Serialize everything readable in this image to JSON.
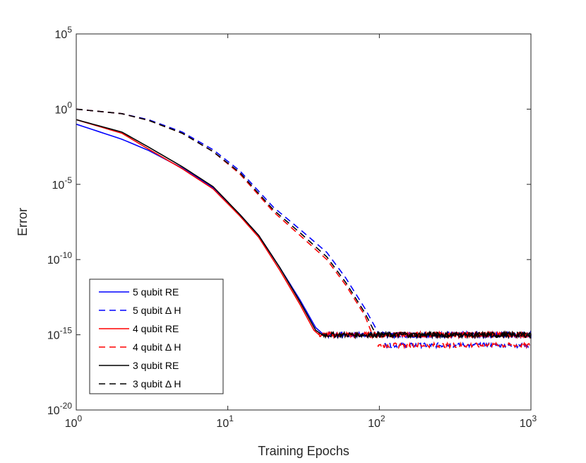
{
  "chart_data": {
    "type": "line",
    "title": "",
    "xlabel": "Training Epochs",
    "ylabel": "Error",
    "xscale": "log",
    "yscale": "log",
    "xlim": [
      1,
      1000
    ],
    "ylim": [
      1e-20,
      100000.0
    ],
    "x_ticks": [
      {
        "value": 1,
        "base": "10",
        "exp": "0"
      },
      {
        "value": 10,
        "base": "10",
        "exp": "1"
      },
      {
        "value": 100,
        "base": "10",
        "exp": "2"
      },
      {
        "value": 1000,
        "base": "10",
        "exp": "3"
      }
    ],
    "y_ticks": [
      {
        "value": 100000.0,
        "base": "10",
        "exp": "5"
      },
      {
        "value": 1,
        "base": "10",
        "exp": "0"
      },
      {
        "value": 1e-05,
        "base": "10",
        "exp": "-5"
      },
      {
        "value": 1e-10,
        "base": "10",
        "exp": "-10"
      },
      {
        "value": 1e-15,
        "base": "10",
        "exp": "-15"
      },
      {
        "value": 1e-20,
        "base": "10",
        "exp": "-20"
      }
    ],
    "legend_position": "bottom-left",
    "series": [
      {
        "name": "5 qubit RE",
        "color": "#0000ff",
        "style": "solid",
        "points": [
          [
            1,
            0.1
          ],
          [
            2,
            0.01
          ],
          [
            3,
            0.0018
          ],
          [
            5,
            0.00012
          ],
          [
            8,
            6e-06
          ],
          [
            12,
            1e-07
          ],
          [
            16,
            4e-09
          ],
          [
            22,
            3e-11
          ],
          [
            30,
            2e-13
          ],
          [
            38,
            3e-15
          ],
          [
            43,
            1e-15
          ]
        ],
        "plateau": 1e-15
      },
      {
        "name": "5 qubit Δ H",
        "color": "#0000ff",
        "style": "dashed",
        "points": [
          [
            1,
            1
          ],
          [
            2,
            0.5
          ],
          [
            3,
            0.2
          ],
          [
            5,
            0.03
          ],
          [
            8,
            0.002
          ],
          [
            12,
            8e-05
          ],
          [
            20,
            3e-07
          ],
          [
            30,
            1e-08
          ],
          [
            45,
            3e-10
          ],
          [
            60,
            6e-12
          ],
          [
            80,
            6e-14
          ],
          [
            100,
            1e-15
          ]
        ],
        "plateau": 1e-15,
        "plateau_low": 2e-16
      },
      {
        "name": "4 qubit RE",
        "color": "#ff0000",
        "style": "solid",
        "points": [
          [
            1,
            0.2
          ],
          [
            2,
            0.025
          ],
          [
            3,
            0.0022
          ],
          [
            5,
            0.00011
          ],
          [
            8,
            5e-06
          ],
          [
            12,
            8e-08
          ],
          [
            16,
            3e-09
          ],
          [
            22,
            2e-11
          ],
          [
            30,
            1e-13
          ],
          [
            37,
            2e-15
          ],
          [
            40,
            1e-15
          ]
        ],
        "plateau": 1e-15
      },
      {
        "name": "4 qubit Δ H",
        "color": "#ff0000",
        "style": "dashed",
        "points": [
          [
            1,
            1
          ],
          [
            2,
            0.5
          ],
          [
            3,
            0.18
          ],
          [
            5,
            0.025
          ],
          [
            8,
            0.0015
          ],
          [
            12,
            5e-05
          ],
          [
            20,
            1.5e-07
          ],
          [
            30,
            4e-09
          ],
          [
            45,
            1e-10
          ],
          [
            60,
            2e-12
          ],
          [
            80,
            2e-14
          ],
          [
            90,
            1e-15
          ]
        ],
        "plateau": 1e-15,
        "plateau_low": 2e-16
      },
      {
        "name": "3 qubit RE",
        "color": "#000000",
        "style": "solid",
        "points": [
          [
            1,
            0.2
          ],
          [
            2,
            0.03
          ],
          [
            3,
            0.003
          ],
          [
            5,
            0.00015
          ],
          [
            8,
            7e-06
          ],
          [
            12,
            1e-07
          ],
          [
            16,
            4e-09
          ],
          [
            22,
            3e-11
          ],
          [
            30,
            1.5e-13
          ],
          [
            38,
            2e-15
          ],
          [
            42,
            1e-15
          ]
        ],
        "plateau": 1e-15
      },
      {
        "name": "3 qubit Δ H",
        "color": "#000000",
        "style": "dashed",
        "points": [
          [
            1,
            1
          ],
          [
            2,
            0.5
          ],
          [
            3,
            0.18
          ],
          [
            5,
            0.025
          ],
          [
            8,
            0.0015
          ],
          [
            12,
            6e-05
          ],
          [
            20,
            2e-07
          ],
          [
            30,
            6e-09
          ],
          [
            45,
            1.5e-10
          ],
          [
            60,
            3e-12
          ],
          [
            80,
            3e-14
          ],
          [
            95,
            1e-15
          ]
        ],
        "plateau": 1e-15
      }
    ]
  }
}
